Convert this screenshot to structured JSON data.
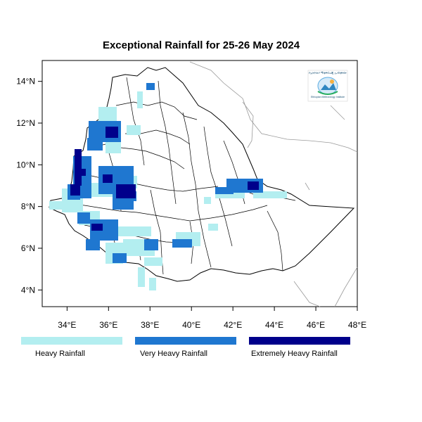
{
  "title": "Exceptional Rainfall for 25-26 May 2024",
  "lat_ticks": [
    "4°N",
    "6°N",
    "8°N",
    "10°N",
    "12°N",
    "14°N"
  ],
  "lon_ticks": [
    "34°E",
    "36°E",
    "38°E",
    "40°E",
    "42°E",
    "44°E",
    "46°E",
    "48°E"
  ],
  "lon_range": [
    32.8,
    48.0
  ],
  "lat_range": [
    3.2,
    15.0
  ],
  "legend": [
    {
      "label": "Heavy Rainfall",
      "color": "#b3eef0"
    },
    {
      "label": "Very Heavy Rainfall",
      "color": "#1f77d0"
    },
    {
      "label": "Extremely Heavy Rainfall",
      "color": "#00008b"
    }
  ],
  "logo": {
    "text_top": "የኢትዮጵያ ሚቲዎሮሎጂ ኢንስቲትዩት",
    "text_bottom": "Ethiopian Meteorology Institute"
  }
}
